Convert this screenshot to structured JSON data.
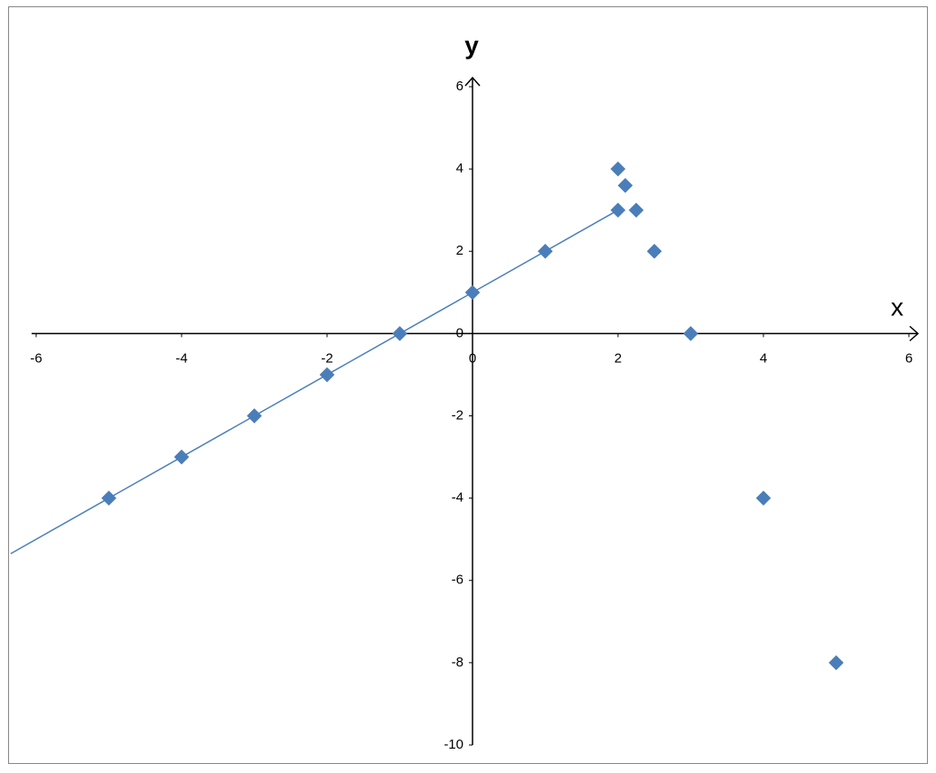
{
  "chart_data": {
    "type": "scatter",
    "x_axis_label": "x",
    "y_axis_label": "y",
    "xlim": [
      -6,
      6
    ],
    "ylim": [
      -10,
      6
    ],
    "xticks": [
      -6,
      -4,
      -2,
      0,
      2,
      4,
      6
    ],
    "yticks": [
      -10,
      -8,
      -6,
      -4,
      -2,
      0,
      2,
      4,
      6
    ],
    "series": [
      {
        "mode": "markers",
        "color": "#4a7ebb",
        "x": [
          -5,
          -4,
          -3,
          -2,
          -1,
          0,
          1,
          2,
          2,
          2.1,
          2.25,
          2.5,
          3,
          4,
          5
        ],
        "values": [
          -4,
          -3,
          -2,
          -1,
          0,
          1,
          2,
          3,
          4,
          3.6,
          3,
          2,
          0,
          -4,
          -8
        ]
      },
      {
        "mode": "line",
        "color": "#4a7ebb",
        "x": [
          -6.35,
          2
        ],
        "values": [
          -5.35,
          3
        ]
      }
    ]
  }
}
